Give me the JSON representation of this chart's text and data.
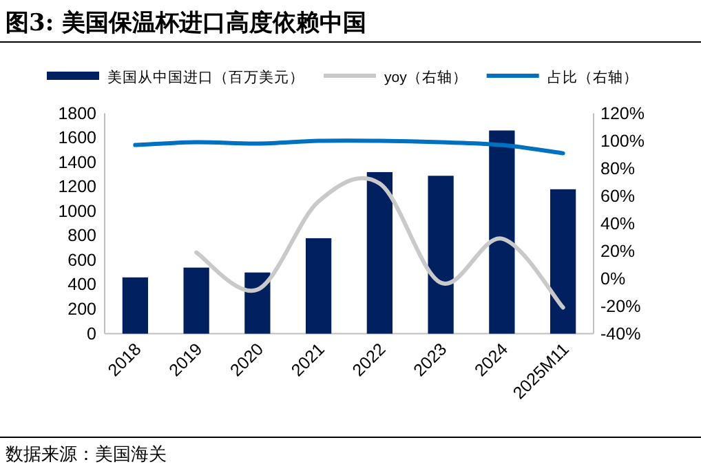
{
  "chart_data": {
    "type": "bar",
    "title": "图3: 美国保温杯进口高度依赖中国",
    "categories": [
      "2018",
      "2019",
      "2020",
      "2021",
      "2022",
      "2023",
      "2024",
      "2025M11"
    ],
    "series": [
      {
        "name": "美国从中国进口（百万美元）",
        "color": "#002060",
        "values": [
          460,
          540,
          500,
          780,
          1320,
          1290,
          1660,
          1180
        ]
      },
      {
        "name": "yoy（右轴）",
        "type": "line",
        "axis": "y2",
        "color": "#c9c9c9",
        "values": [
          null,
          19,
          -8,
          56,
          69,
          -3,
          29,
          -21
        ]
      },
      {
        "name": "占比（右轴）",
        "type": "line",
        "axis": "y2",
        "color": "#0070c0",
        "values": [
          97,
          99,
          98,
          100,
          100,
          99,
          97,
          91
        ]
      }
    ],
    "ylim": [
      0,
      1800
    ],
    "yticks": [
      0,
      200,
      400,
      600,
      800,
      1000,
      1200,
      1400,
      1600,
      1800
    ],
    "y2lim": [
      -40,
      120
    ],
    "y2ticks": [
      {
        "value": -40,
        "label": "-40%"
      },
      {
        "value": -20,
        "label": "-20%"
      },
      {
        "value": 0,
        "label": "0%"
      },
      {
        "value": 20,
        "label": "20%"
      },
      {
        "value": 40,
        "label": "40%"
      },
      {
        "value": 60,
        "label": "60%"
      },
      {
        "value": 80,
        "label": "80%"
      },
      {
        "value": 100,
        "label": "100%"
      },
      {
        "value": 120,
        "label": "120%"
      }
    ],
    "legend": "top",
    "annotations": [
      "数据来源：美国海关"
    ]
  }
}
